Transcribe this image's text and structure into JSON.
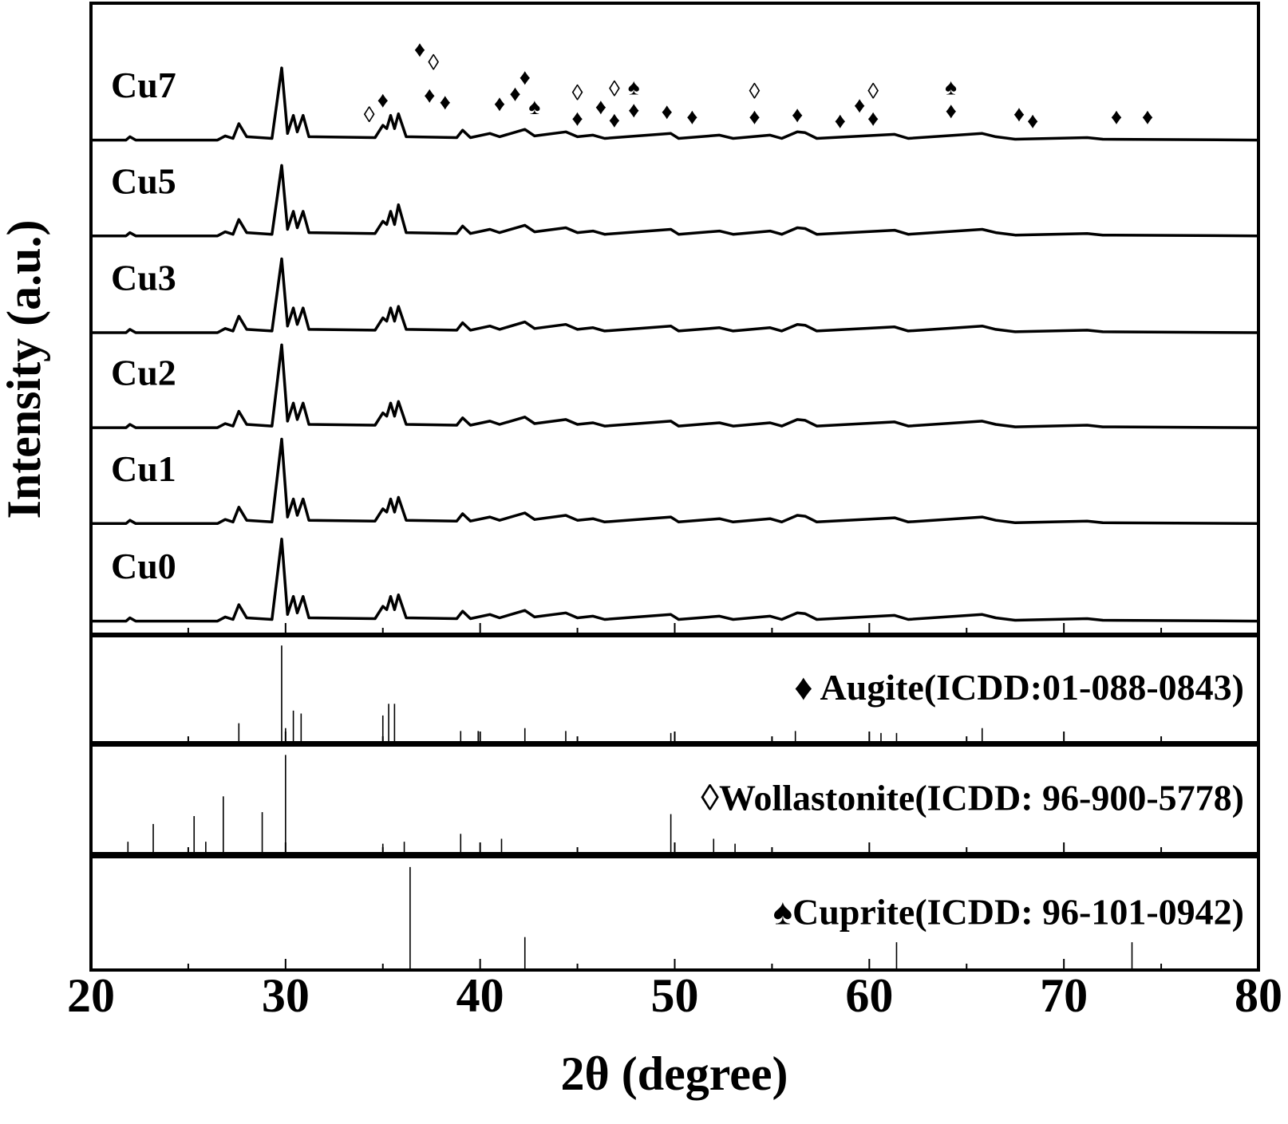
{
  "chart_data": [
    {
      "type": "line",
      "xlabel": "2θ (degree)",
      "ylabel": "Intensity (a.u.)",
      "xlim": [
        20,
        80
      ],
      "ylim": [
        0,
        770
      ],
      "xticks": [
        20,
        30,
        40,
        50,
        60,
        70,
        80
      ],
      "xminorticks": [
        25,
        35,
        45,
        55,
        65,
        75
      ],
      "x": [
        20,
        21.8,
        22.0,
        22.3,
        26.5,
        26.9,
        27.3,
        27.6,
        28.0,
        29.3,
        29.8,
        30.1,
        30.4,
        30.6,
        30.9,
        31.2,
        34.6,
        35.0,
        35.2,
        35.4,
        35.6,
        35.8,
        36.2,
        38.8,
        39.1,
        39.5,
        40.5,
        41.0,
        42.3,
        42.8,
        44.4,
        45.0,
        45.8,
        46.4,
        49.8,
        50.2,
        52.3,
        53.0,
        54.9,
        55.5,
        56.3,
        56.7,
        57.3,
        61.3,
        62.0,
        65.8,
        66.5,
        67.5,
        71.2,
        72.0,
        80
      ],
      "series": [
        {
          "name": "Cu0",
          "color": "#000000",
          "values": [
            16,
            16,
            20,
            16,
            16,
            21,
            18,
            36,
            20,
            18,
            116,
            24,
            46,
            26,
            46,
            20,
            19,
            34,
            30,
            46,
            30,
            48,
            20,
            19,
            28,
            19,
            24,
            20,
            29,
            21,
            26,
            20,
            22,
            18,
            24,
            18,
            22,
            18,
            22,
            18,
            26,
            25,
            18,
            23,
            18,
            24,
            20,
            17,
            19,
            17,
            16
          ]
        },
        {
          "name": "Cu1",
          "color": "#000000",
          "values": [
            135,
            135,
            139,
            135,
            135,
            140,
            137,
            155,
            139,
            137,
            238,
            143,
            165,
            145,
            165,
            139,
            138,
            153,
            149,
            165,
            149,
            167,
            139,
            138,
            147,
            138,
            143,
            139,
            148,
            140,
            145,
            139,
            141,
            137,
            143,
            137,
            141,
            137,
            141,
            137,
            145,
            144,
            137,
            142,
            137,
            143,
            139,
            136,
            138,
            136,
            135
          ]
        },
        {
          "name": "Cu2",
          "color": "#000000",
          "values": [
            252,
            252,
            256,
            252,
            252,
            257,
            254,
            272,
            256,
            254,
            353,
            260,
            282,
            262,
            282,
            256,
            255,
            270,
            266,
            282,
            266,
            284,
            256,
            255,
            264,
            255,
            260,
            256,
            265,
            257,
            262,
            256,
            258,
            254,
            260,
            254,
            258,
            254,
            258,
            254,
            262,
            261,
            254,
            259,
            254,
            260,
            256,
            253,
            255,
            253,
            252
          ]
        },
        {
          "name": "Cu3",
          "color": "#000000",
          "values": [
            368,
            368,
            372,
            368,
            368,
            373,
            370,
            388,
            372,
            370,
            458,
            376,
            398,
            378,
            398,
            372,
            371,
            386,
            382,
            398,
            382,
            400,
            372,
            371,
            380,
            371,
            376,
            372,
            381,
            373,
            378,
            372,
            374,
            370,
            376,
            370,
            374,
            370,
            374,
            370,
            378,
            377,
            370,
            375,
            370,
            376,
            372,
            369,
            371,
            369,
            368
          ]
        },
        {
          "name": "Cu5",
          "color": "#000000",
          "values": [
            486,
            486,
            490,
            486,
            486,
            491,
            488,
            506,
            490,
            488,
            572,
            494,
            516,
            496,
            516,
            490,
            489,
            504,
            500,
            516,
            500,
            524,
            490,
            489,
            498,
            489,
            494,
            490,
            499,
            491,
            496,
            490,
            492,
            488,
            494,
            488,
            492,
            488,
            492,
            488,
            496,
            495,
            488,
            493,
            488,
            494,
            490,
            487,
            489,
            487,
            486
          ]
        },
        {
          "name": "Cu7",
          "color": "#000000",
          "values": [
            603,
            603,
            607,
            603,
            603,
            608,
            605,
            623,
            607,
            605,
            691,
            611,
            633,
            613,
            633,
            607,
            606,
            621,
            617,
            633,
            617,
            635,
            607,
            606,
            615,
            606,
            611,
            607,
            616,
            608,
            613,
            607,
            609,
            605,
            611,
            605,
            609,
            605,
            609,
            605,
            613,
            612,
            605,
            610,
            605,
            611,
            607,
            604,
            606,
            604,
            603
          ]
        }
      ],
      "annotations": [
        {
          "text": "◊",
          "x": 34.3,
          "y": 631
        },
        {
          "text": "♦",
          "x": 35.0,
          "y": 649
        },
        {
          "text": "♦",
          "x": 36.9,
          "y": 711
        },
        {
          "text": "◊",
          "x": 37.6,
          "y": 695
        },
        {
          "text": "♦",
          "x": 37.4,
          "y": 655
        },
        {
          "text": "♦",
          "x": 38.2,
          "y": 647
        },
        {
          "text": "♦",
          "x": 41.0,
          "y": 645
        },
        {
          "text": "♦",
          "x": 41.8,
          "y": 657
        },
        {
          "text": "♦",
          "x": 42.3,
          "y": 677
        },
        {
          "text": "♠",
          "x": 42.8,
          "y": 641
        },
        {
          "text": "◊",
          "x": 45.0,
          "y": 658
        },
        {
          "text": "♦",
          "x": 45.0,
          "y": 627
        },
        {
          "text": "♦",
          "x": 46.2,
          "y": 641
        },
        {
          "text": "◊",
          "x": 46.9,
          "y": 663
        },
        {
          "text": "♦",
          "x": 46.9,
          "y": 625
        },
        {
          "text": "♠",
          "x": 47.9,
          "y": 665
        },
        {
          "text": "♦",
          "x": 47.9,
          "y": 637
        },
        {
          "text": "♦",
          "x": 49.6,
          "y": 635
        },
        {
          "text": "♦",
          "x": 50.9,
          "y": 629
        },
        {
          "text": "◊",
          "x": 54.1,
          "y": 660
        },
        {
          "text": "♦",
          "x": 54.1,
          "y": 629
        },
        {
          "text": "♦",
          "x": 56.3,
          "y": 631
        },
        {
          "text": "♦",
          "x": 58.5,
          "y": 624
        },
        {
          "text": "♦",
          "x": 59.5,
          "y": 643
        },
        {
          "text": "◊",
          "x": 60.2,
          "y": 660
        },
        {
          "text": "♦",
          "x": 60.2,
          "y": 627
        },
        {
          "text": "♠",
          "x": 64.2,
          "y": 665
        },
        {
          "text": "♦",
          "x": 64.2,
          "y": 636
        },
        {
          "text": "♦",
          "x": 67.7,
          "y": 632
        },
        {
          "text": "♦",
          "x": 68.4,
          "y": 624
        },
        {
          "text": "♦",
          "x": 72.7,
          "y": 629
        },
        {
          "text": "♦",
          "x": 74.3,
          "y": 629
        }
      ]
    },
    {
      "type": "stick",
      "label": "♦ Augite(ICDD:01-088-0843)",
      "xlim": [
        20,
        80
      ],
      "ylim": [
        0,
        110
      ],
      "x": [
        27.6,
        29.8,
        30.0,
        30.4,
        30.8,
        35.0,
        35.3,
        35.6,
        39.0,
        39.9,
        42.3,
        44.4,
        49.8,
        56.2,
        60.6,
        61.4,
        65.8
      ],
      "values": [
        20,
        100,
        15,
        33,
        30,
        28,
        40,
        40,
        12,
        12,
        15,
        12,
        10,
        12,
        10,
        10,
        15
      ]
    },
    {
      "type": "stick",
      "label": "◊Wollastonite(ICDD: 96-900-5778)",
      "xlim": [
        20,
        80
      ],
      "ylim": [
        0,
        110
      ],
      "x": [
        21.9,
        23.2,
        25.3,
        25.9,
        26.8,
        28.8,
        30.0,
        35.0,
        36.1,
        39.0,
        41.1,
        49.8,
        52.0,
        53.1
      ],
      "values": [
        12,
        30,
        38,
        12,
        58,
        42,
        100,
        10,
        12,
        20,
        15,
        40,
        15,
        10
      ]
    },
    {
      "type": "stick",
      "label": "♠Cuprite(ICDD: 96-101-0942)",
      "xlim": [
        20,
        80
      ],
      "ylim": [
        0,
        110
      ],
      "x": [
        36.4,
        42.3,
        61.4,
        73.5
      ],
      "values": [
        100,
        32,
        27,
        27
      ]
    }
  ]
}
